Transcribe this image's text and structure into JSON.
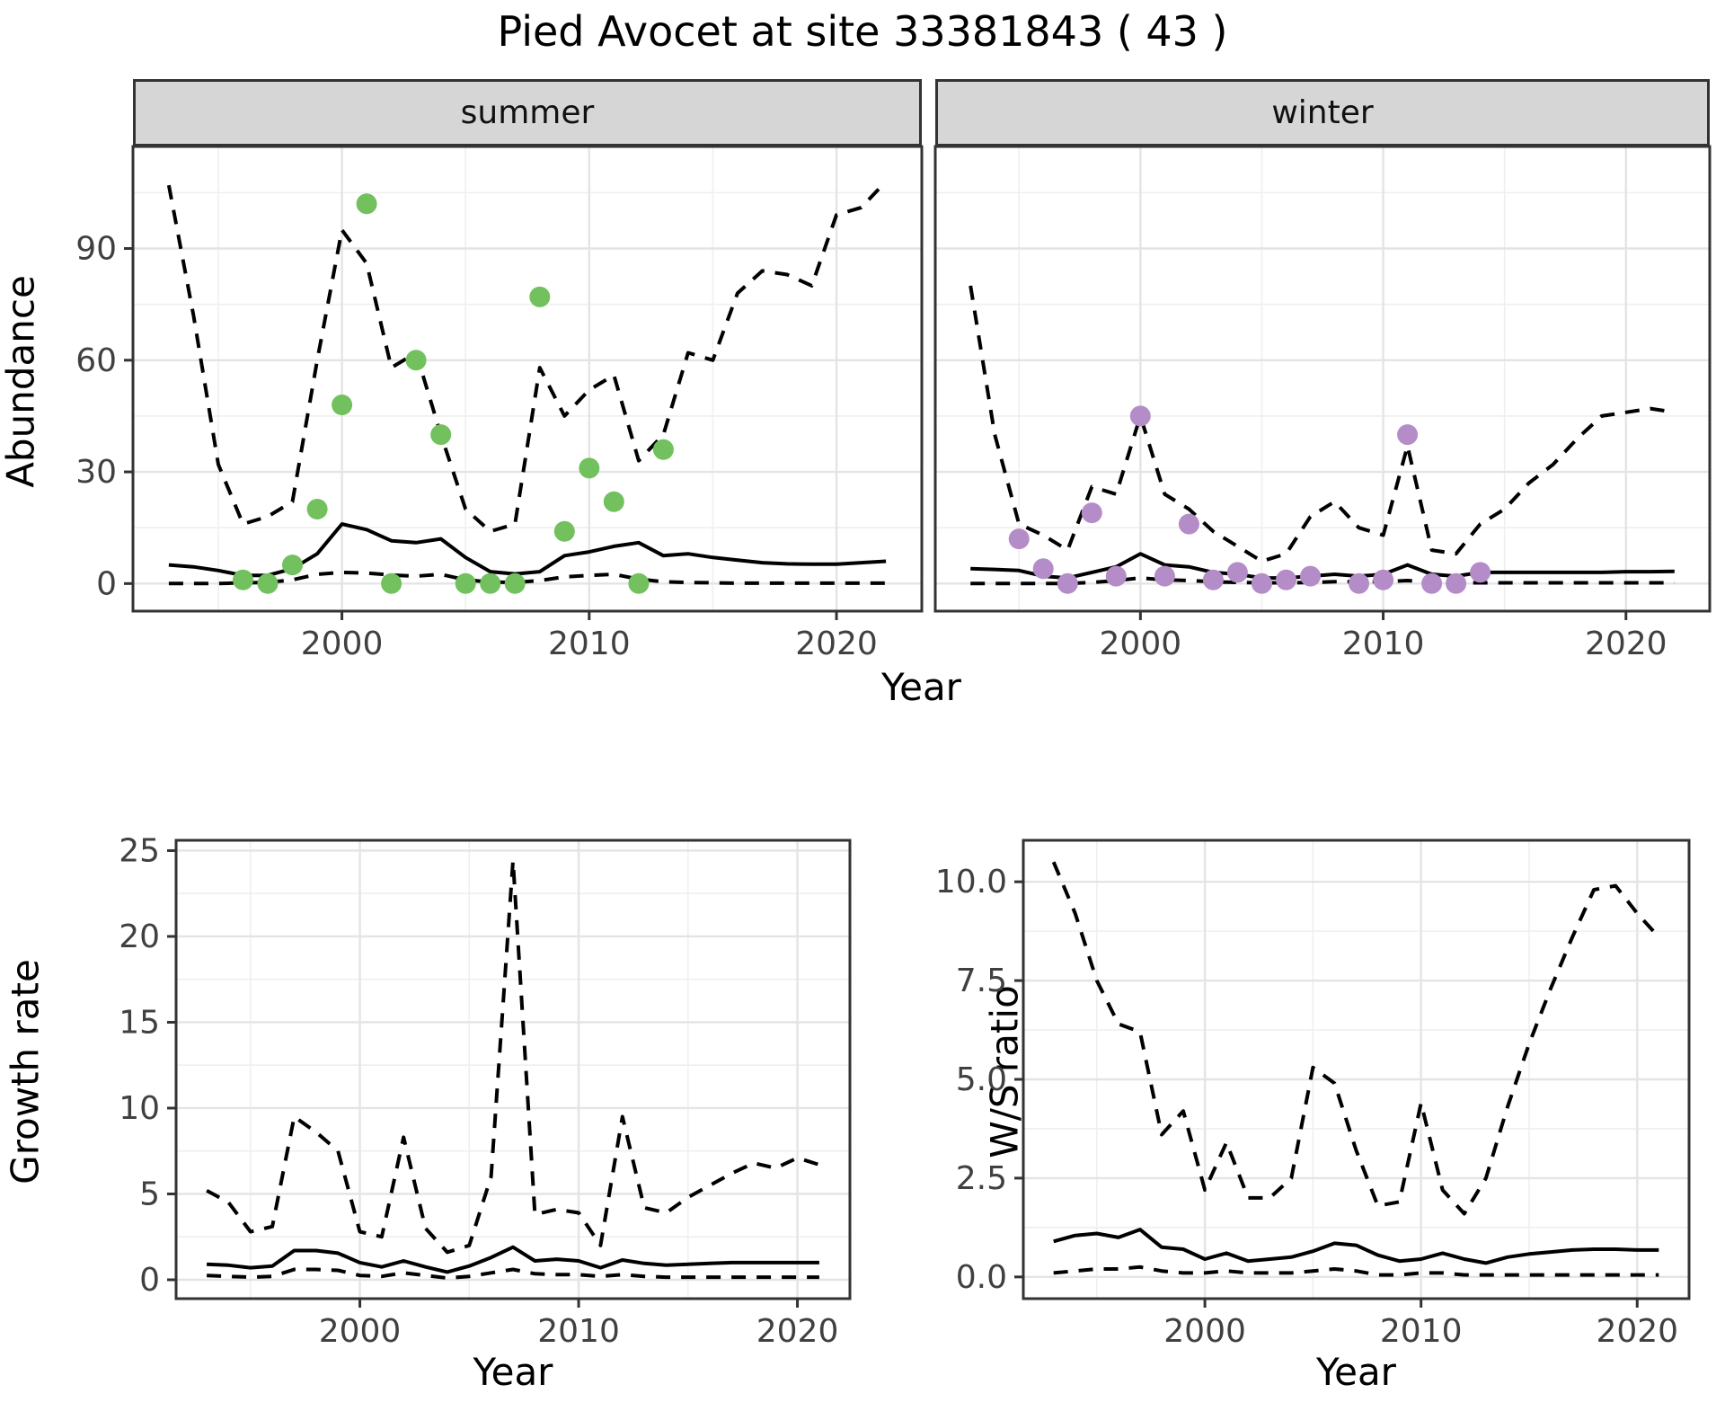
{
  "title": "Pied Avocet at site 33381843 ( 43 )",
  "colors": {
    "summer_point": "#72c05e",
    "winter_point": "#b48cc8",
    "line": "#000000",
    "panel_border": "#333333",
    "strip_bg": "#d6d6d6",
    "grid_major": "#e4e4e4",
    "grid_minor": "#efefef",
    "tick_text": "#404040"
  },
  "chart_data": [
    {
      "id": "abundance-summer",
      "type": "line",
      "facet": "summer",
      "ylabel": "Abundance",
      "xlabel": "Year",
      "xlim": [
        1991.55,
        2023.45
      ],
      "ylim": [
        -7.4,
        117.4
      ],
      "xticks": [
        2000,
        2010,
        2020
      ],
      "xminor": [
        1995,
        2005,
        2015
      ],
      "yticks": [
        0,
        30,
        60,
        90
      ],
      "yminor": [
        15,
        45,
        75,
        105
      ],
      "years": [
        1993,
        1994,
        1995,
        1996,
        1997,
        1998,
        1999,
        2000,
        2001,
        2002,
        2003,
        2004,
        2005,
        2006,
        2007,
        2008,
        2009,
        2010,
        2011,
        2012,
        2013,
        2014,
        2015,
        2016,
        2017,
        2018,
        2019,
        2020,
        2021,
        2022
      ],
      "series": [
        {
          "name": "upper CI",
          "style": "dashed",
          "values": [
            107,
            72,
            32,
            16,
            18,
            22,
            60,
            95,
            86,
            58,
            62,
            40,
            20,
            14,
            16,
            58,
            45,
            52,
            56,
            33,
            40,
            62,
            60,
            78,
            84,
            83,
            80,
            99,
            101,
            108
          ]
        },
        {
          "name": "median",
          "style": "solid",
          "values": [
            5,
            4.5,
            3.5,
            2.2,
            2.2,
            4,
            8,
            16,
            14.5,
            11.5,
            11,
            12,
            7,
            3.2,
            2.6,
            3.2,
            7.5,
            8.5,
            10,
            11,
            7.5,
            8,
            7,
            6.3,
            5.6,
            5.3,
            5.2,
            5.2,
            5.6,
            6
          ]
        },
        {
          "name": "lower CI",
          "style": "dashed",
          "values": [
            0,
            0,
            0,
            0.2,
            0.3,
            1,
            2.5,
            3,
            2.8,
            2.3,
            2,
            2.5,
            1,
            0.4,
            0.3,
            0.8,
            1.8,
            2.2,
            2.5,
            1.2,
            0.5,
            0.3,
            0.2,
            0.1,
            0.1,
            0.1,
            0.1,
            0.1,
            0.1,
            0.1
          ]
        }
      ],
      "points": {
        "name": "summer observations",
        "color": "#72c05e",
        "years": [
          1996,
          1997,
          1998,
          1999,
          2000,
          2001,
          2002,
          2003,
          2004,
          2005,
          2006,
          2007,
          2008,
          2009,
          2010,
          2011,
          2012,
          2013
        ],
        "values": [
          1,
          0,
          5,
          20,
          48,
          102,
          0,
          60,
          40,
          0,
          0,
          0,
          77,
          14,
          31,
          22,
          0,
          36
        ]
      }
    },
    {
      "id": "abundance-winter",
      "type": "line",
      "facet": "winter",
      "ylabel": "",
      "xlabel": "Year",
      "xlim": [
        1991.55,
        2023.45
      ],
      "ylim": [
        -7.4,
        117.4
      ],
      "xticks": [
        2000,
        2010,
        2020
      ],
      "xminor": [
        1995,
        2005,
        2015
      ],
      "yticks": [
        0,
        30,
        60,
        90
      ],
      "yminor": [
        15,
        45,
        75,
        105
      ],
      "years": [
        1993,
        1994,
        1995,
        1996,
        1997,
        1998,
        1999,
        2000,
        2001,
        2002,
        2003,
        2004,
        2005,
        2006,
        2007,
        2008,
        2009,
        2010,
        2011,
        2012,
        2013,
        2014,
        2015,
        2016,
        2017,
        2018,
        2019,
        2020,
        2021,
        2022
      ],
      "series": [
        {
          "name": "upper CI",
          "style": "dashed",
          "values": [
            80,
            40,
            16,
            13,
            9,
            26,
            24,
            45,
            24,
            20,
            14,
            10,
            6,
            8,
            18,
            22,
            15,
            13,
            37,
            9,
            8,
            16,
            20,
            27,
            32,
            39,
            45,
            46,
            47,
            46
          ]
        },
        {
          "name": "median",
          "style": "solid",
          "values": [
            4,
            3.8,
            3.5,
            2,
            1.5,
            3,
            4.5,
            8,
            5,
            4.5,
            3,
            2.5,
            1.5,
            1.5,
            2,
            2.5,
            2,
            2.5,
            5,
            2.5,
            2,
            3,
            3,
            3,
            3,
            3,
            3,
            3.2,
            3.2,
            3.3
          ]
        },
        {
          "name": "lower CI",
          "style": "dashed",
          "values": [
            0,
            0,
            0,
            0,
            0,
            0.3,
            0.8,
            1.5,
            1,
            0.8,
            0.5,
            0.3,
            0.2,
            0.2,
            0.3,
            0.5,
            0.5,
            0.5,
            0.8,
            0.3,
            0.2,
            0.2,
            0.2,
            0.2,
            0.2,
            0.2,
            0.2,
            0.2,
            0.2,
            0.2
          ]
        }
      ],
      "points": {
        "name": "winter observations",
        "color": "#b48cc8",
        "years": [
          1995,
          1996,
          1997,
          1998,
          1999,
          2000,
          2001,
          2002,
          2003,
          2004,
          2005,
          2006,
          2007,
          2009,
          2010,
          2011,
          2012,
          2013,
          2014
        ],
        "values": [
          12,
          4,
          0,
          19,
          2,
          45,
          2,
          16,
          1,
          3,
          0,
          1,
          2,
          0,
          1,
          40,
          0,
          0,
          3
        ]
      }
    },
    {
      "id": "growth-rate",
      "type": "line",
      "facet": "",
      "ylabel": "Growth rate",
      "xlabel": "Year",
      "xlim": [
        1991.6,
        2022.4
      ],
      "ylim": [
        -1.1,
        25.6
      ],
      "xticks": [
        2000,
        2010,
        2020
      ],
      "xminor": [
        1995,
        2005,
        2015
      ],
      "yticks": [
        0,
        5,
        10,
        15,
        20,
        25
      ],
      "yminor": [
        2.5,
        7.5,
        12.5,
        17.5,
        22.5
      ],
      "years": [
        1993,
        1994,
        1995,
        1996,
        1997,
        1998,
        1999,
        2000,
        2001,
        2002,
        2003,
        2004,
        2005,
        2006,
        2007,
        2008,
        2009,
        2010,
        2011,
        2012,
        2013,
        2014,
        2015,
        2016,
        2017,
        2018,
        2019,
        2020,
        2021
      ],
      "series": [
        {
          "name": "upper CI",
          "style": "dashed",
          "values": [
            5.2,
            4.5,
            2.8,
            3.1,
            9.5,
            8.6,
            7.5,
            2.8,
            2.5,
            8.3,
            3.0,
            1.6,
            2.0,
            6.0,
            24.4,
            3.8,
            4.1,
            3.9,
            2.0,
            9.5,
            4.2,
            3.9,
            4.8,
            5.5,
            6.2,
            6.8,
            6.5,
            7.1,
            6.7
          ]
        },
        {
          "name": "median",
          "style": "solid",
          "values": [
            0.9,
            0.85,
            0.7,
            0.8,
            1.7,
            1.7,
            1.55,
            1.0,
            0.75,
            1.1,
            0.75,
            0.45,
            0.8,
            1.3,
            1.9,
            1.1,
            1.2,
            1.1,
            0.7,
            1.15,
            0.95,
            0.85,
            0.9,
            0.95,
            1.0,
            1.0,
            1.0,
            1.0,
            1.0
          ]
        },
        {
          "name": "lower CI",
          "style": "dashed",
          "values": [
            0.25,
            0.2,
            0.15,
            0.2,
            0.6,
            0.6,
            0.55,
            0.25,
            0.2,
            0.4,
            0.25,
            0.1,
            0.2,
            0.4,
            0.6,
            0.35,
            0.3,
            0.3,
            0.2,
            0.3,
            0.2,
            0.15,
            0.15,
            0.15,
            0.15,
            0.15,
            0.15,
            0.15,
            0.15
          ]
        }
      ],
      "points": null
    },
    {
      "id": "ws-ratio",
      "type": "line",
      "facet": "",
      "ylabel": "W/S ratio",
      "xlabel": "Year",
      "xlim": [
        1991.6,
        2022.4
      ],
      "ylim": [
        -0.55,
        11.05
      ],
      "xticks": [
        2000,
        2010,
        2020
      ],
      "xminor": [
        1995,
        2005,
        2015
      ],
      "yticks": [
        0.0,
        2.5,
        5.0,
        7.5,
        10.0
      ],
      "yminor": [
        1.25,
        3.75,
        6.25,
        8.75
      ],
      "ytick_labels": [
        "0.0",
        "2.5",
        "5.0",
        "7.5",
        "10.0"
      ],
      "years": [
        1993,
        1994,
        1995,
        1996,
        1997,
        1998,
        1999,
        2000,
        2001,
        2002,
        2003,
        2004,
        2005,
        2006,
        2007,
        2008,
        2009,
        2010,
        2011,
        2012,
        2013,
        2014,
        2015,
        2016,
        2017,
        2018,
        2019,
        2020,
        2021
      ],
      "series": [
        {
          "name": "upper CI",
          "style": "dashed",
          "values": [
            10.5,
            9.2,
            7.5,
            6.4,
            6.2,
            3.6,
            4.2,
            2.2,
            3.4,
            2.0,
            2.0,
            2.5,
            5.3,
            4.9,
            3.2,
            1.8,
            1.9,
            4.4,
            2.2,
            1.6,
            2.5,
            4.3,
            5.9,
            7.3,
            8.6,
            9.8,
            9.9,
            9.2,
            8.6
          ]
        },
        {
          "name": "median",
          "style": "solid",
          "values": [
            0.9,
            1.05,
            1.1,
            1.0,
            1.2,
            0.75,
            0.7,
            0.45,
            0.6,
            0.4,
            0.45,
            0.5,
            0.65,
            0.85,
            0.8,
            0.55,
            0.4,
            0.45,
            0.6,
            0.45,
            0.35,
            0.5,
            0.58,
            0.63,
            0.68,
            0.7,
            0.7,
            0.68,
            0.68
          ]
        },
        {
          "name": "lower CI",
          "style": "dashed",
          "values": [
            0.1,
            0.15,
            0.2,
            0.2,
            0.25,
            0.15,
            0.1,
            0.1,
            0.15,
            0.1,
            0.1,
            0.1,
            0.15,
            0.2,
            0.15,
            0.05,
            0.05,
            0.1,
            0.1,
            0.05,
            0.05,
            0.05,
            0.05,
            0.05,
            0.05,
            0.05,
            0.05,
            0.05,
            0.05
          ]
        }
      ],
      "points": null
    }
  ]
}
